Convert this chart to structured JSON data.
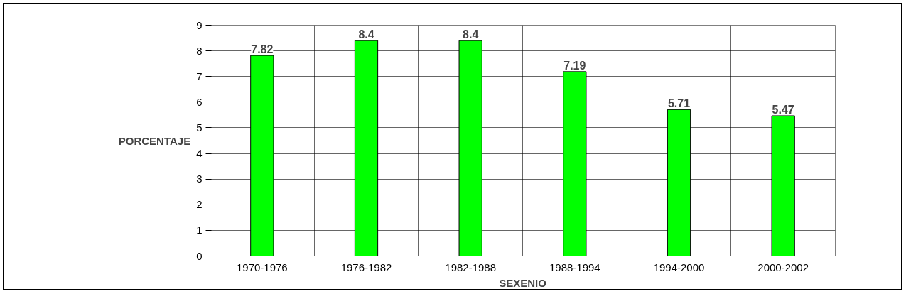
{
  "chart_data": {
    "type": "bar",
    "xlabel": "SEXENIO",
    "ylabel": "PORCENTAJE",
    "categories": [
      "1970-1976",
      "1976-1982",
      "1982-1988",
      "1988-1994",
      "1994-2000",
      "2000-2002"
    ],
    "values": [
      7.82,
      8.4,
      8.4,
      7.19,
      5.71,
      5.47
    ],
    "color": "#00ff00",
    "ylim": [
      0,
      9
    ],
    "yticks": [
      0,
      1,
      2,
      3,
      4,
      5,
      6,
      7,
      8,
      9
    ],
    "grid": true,
    "data_labels": true
  }
}
